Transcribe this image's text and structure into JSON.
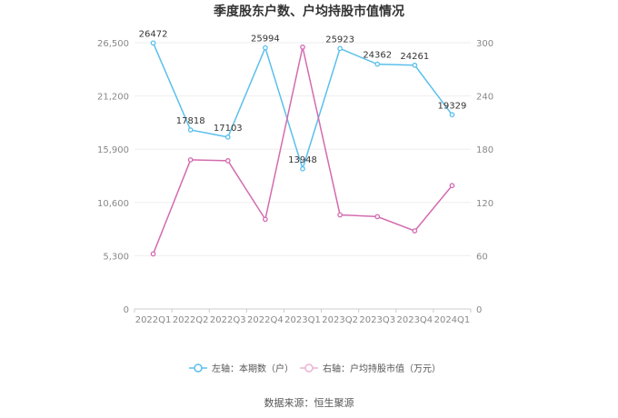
{
  "chart_data": {
    "type": "line",
    "title": "季度股东户数、户均持股市值情况",
    "categories": [
      "2022Q1",
      "2022Q2",
      "2022Q3",
      "2022Q4",
      "2023Q1",
      "2023Q2",
      "2023Q3",
      "2023Q4",
      "2024Q1"
    ],
    "left_axis": {
      "ticks": [
        "0",
        "5,300",
        "10,600",
        "15,900",
        "21,200",
        "26,500"
      ],
      "ylim": [
        0,
        26500
      ]
    },
    "right_axis": {
      "ticks": [
        "0",
        "60",
        "120",
        "180",
        "240",
        "300"
      ],
      "ylim": [
        0,
        300
      ]
    },
    "grid": true,
    "legend_position": "bottom",
    "series": [
      {
        "name": "左轴：本期数（户）",
        "axis": "left",
        "color": "#5bc0eb",
        "values": [
          26472,
          17818,
          17103,
          25994,
          13948,
          25923,
          24362,
          24261,
          19329
        ],
        "labels": [
          "26472",
          "17818",
          "17103",
          "25994",
          "13948",
          "25923",
          "24362",
          "24261",
          "19329"
        ]
      },
      {
        "name": "右轴：户均持股市值（万元）",
        "axis": "right",
        "color": "#d36bb0",
        "values": [
          62,
          168,
          167,
          101,
          295,
          106,
          104,
          88,
          139
        ]
      }
    ],
    "source": "数据来源：恒生聚源"
  }
}
